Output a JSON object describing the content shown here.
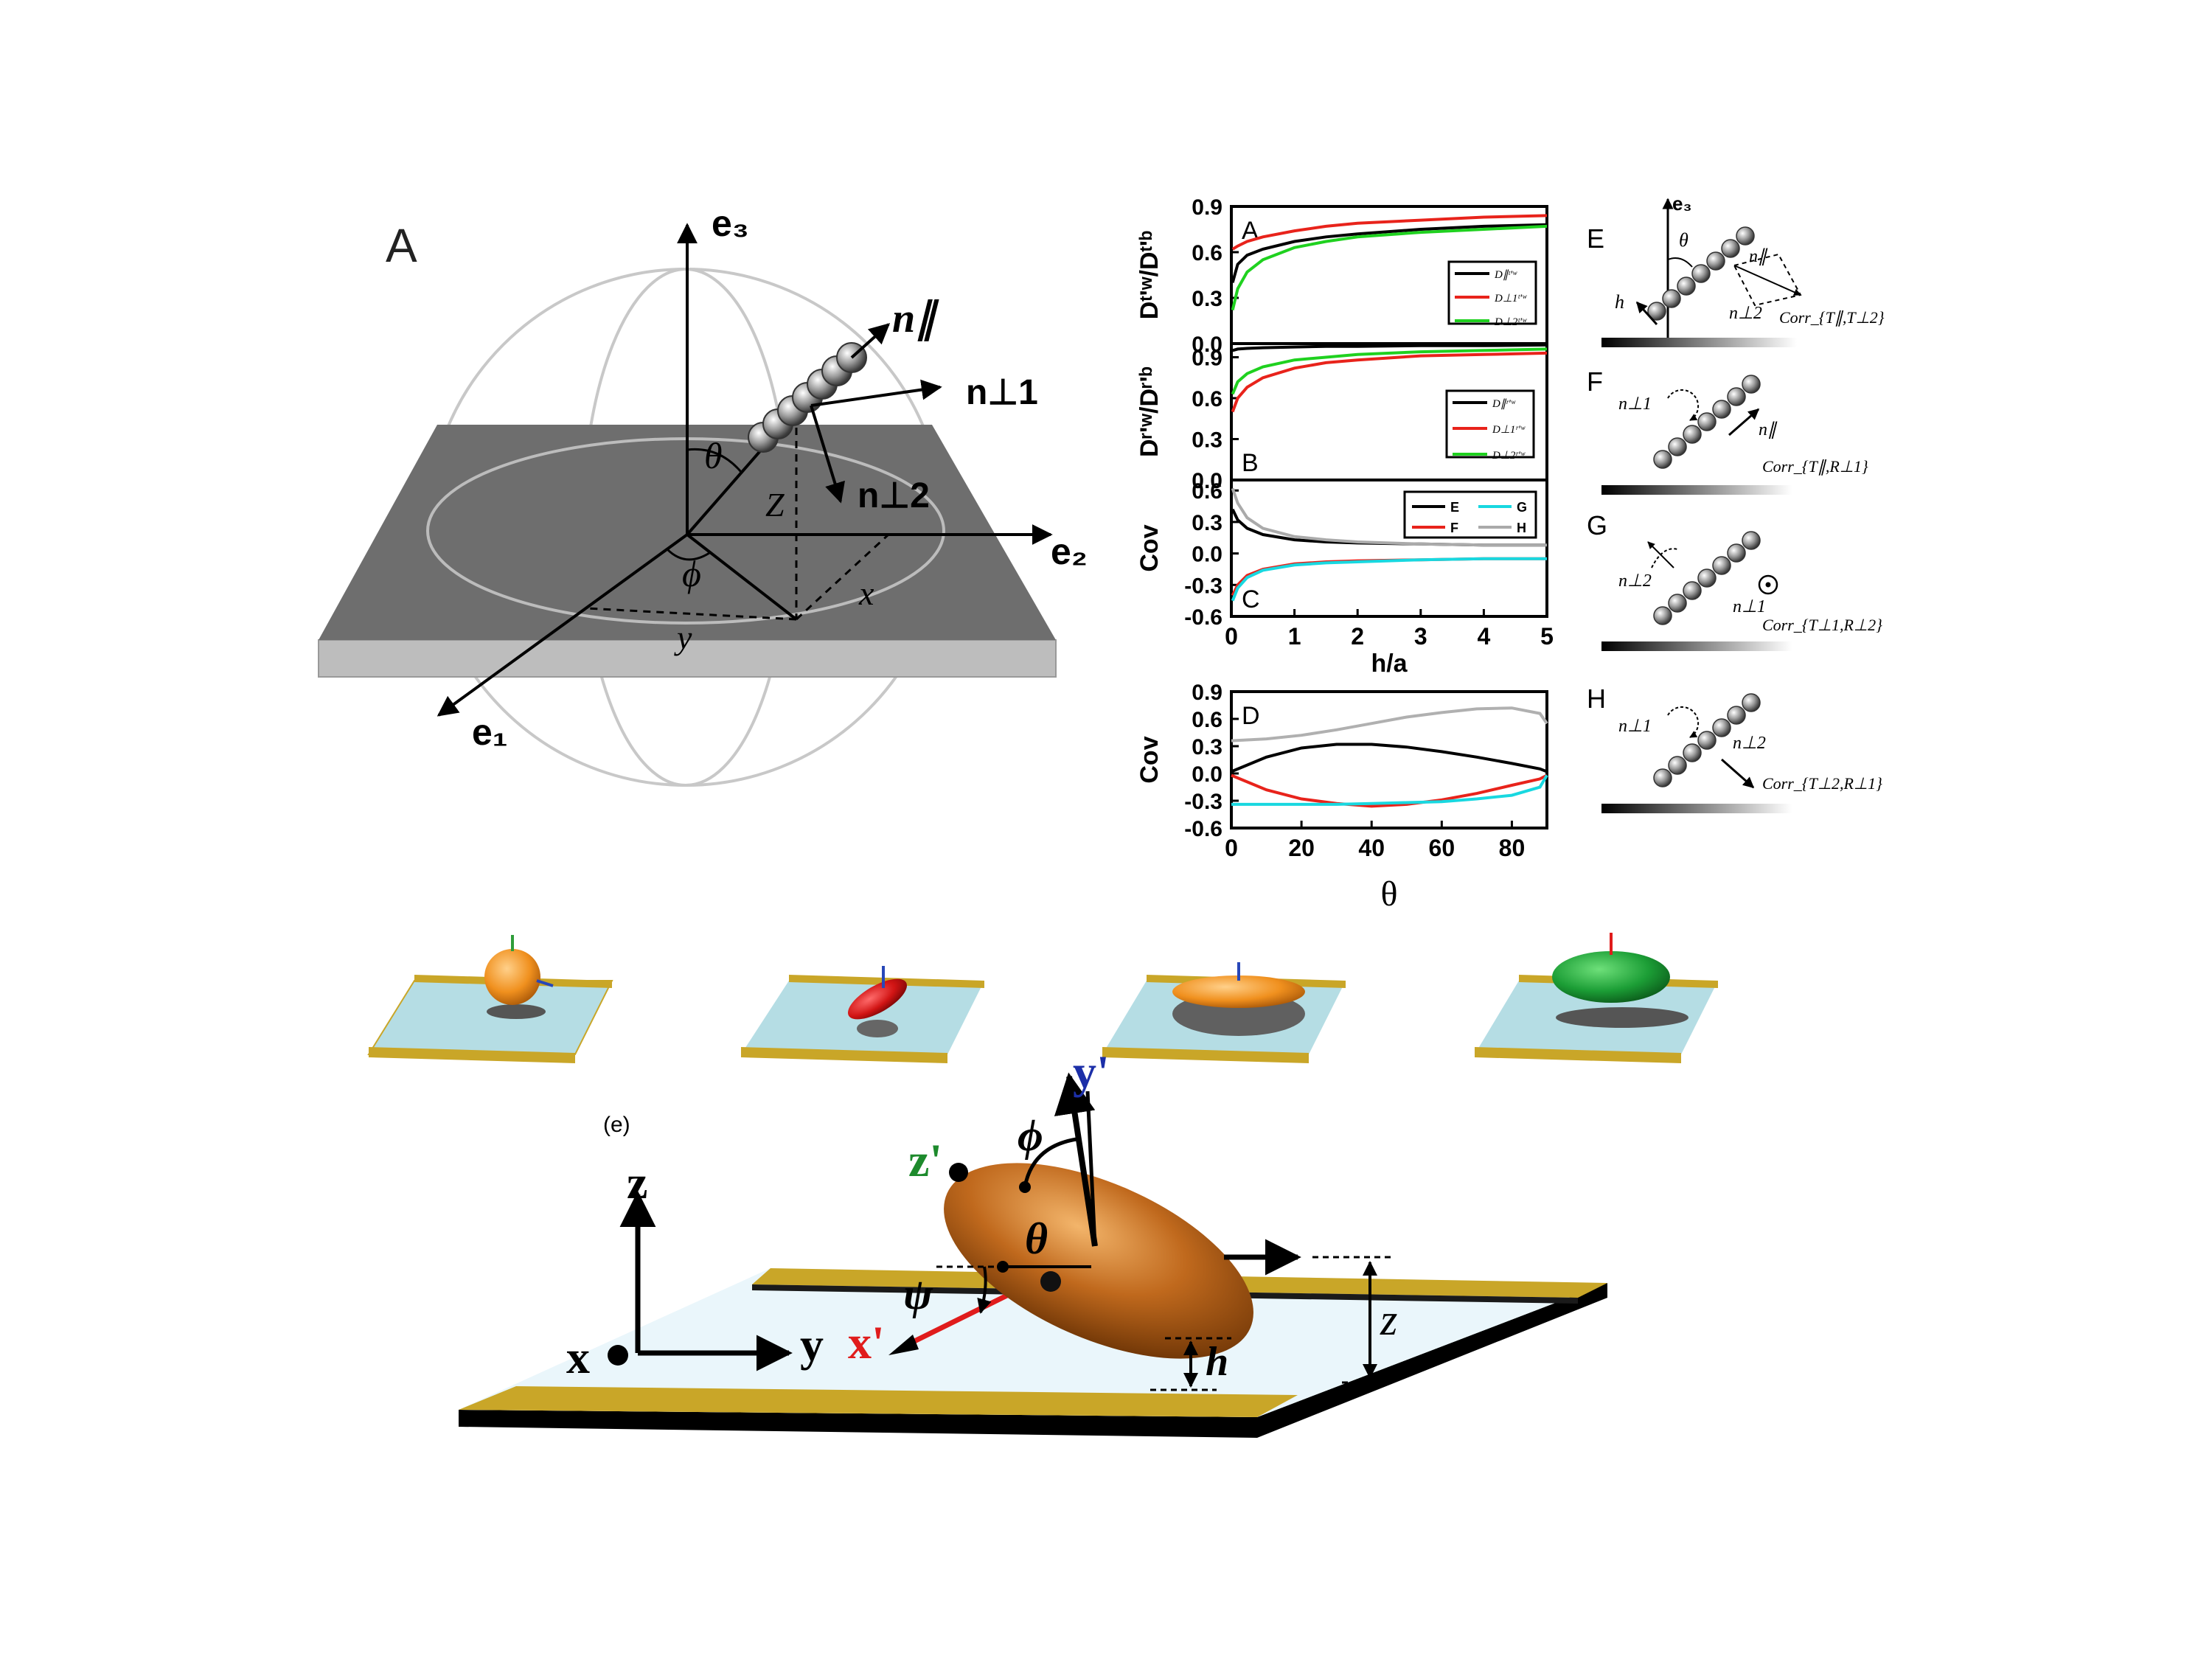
{
  "figure_a": {
    "panel_label": "A",
    "axis_e1": "e₁",
    "axis_e2": "e₂",
    "axis_e3": "e₃",
    "n_par": "n∥",
    "n_perp1": "n⊥1",
    "n_perp2": "n⊥2",
    "theta": "θ",
    "phi": "ϕ",
    "z": "Z",
    "x": "x",
    "y": "y"
  },
  "chart_data": [
    {
      "type": "line",
      "panel": "A",
      "ylabel": "Dᵗ'ʷ/Dᵗ'ᵇ",
      "xlim": [
        0,
        5
      ],
      "ylim": [
        0.0,
        0.9
      ],
      "yticks": [
        "0.9",
        "0.6",
        "0.3",
        "0.0"
      ],
      "x": [
        0.02,
        0.1,
        0.25,
        0.5,
        1,
        1.5,
        2,
        3,
        4,
        5
      ],
      "series": [
        {
          "name": "D∥ᵗ'ʷ",
          "color": "#000000",
          "values": [
            0.4,
            0.52,
            0.58,
            0.62,
            0.67,
            0.7,
            0.72,
            0.75,
            0.77,
            0.78
          ]
        },
        {
          "name": "D⊥1ᵗ'ʷ",
          "color": "#e8231b",
          "values": [
            0.62,
            0.64,
            0.67,
            0.7,
            0.74,
            0.77,
            0.79,
            0.81,
            0.83,
            0.84
          ]
        },
        {
          "name": "D⊥2ᵗ'ʷ",
          "color": "#1fd11f",
          "values": [
            0.22,
            0.36,
            0.47,
            0.55,
            0.63,
            0.67,
            0.7,
            0.73,
            0.75,
            0.77
          ]
        }
      ]
    },
    {
      "type": "line",
      "panel": "B",
      "ylabel": "Dʳ'ʷ/Dʳ'ᵇ",
      "xlim": [
        0,
        5
      ],
      "ylim": [
        0.0,
        1.0
      ],
      "yticks": [
        "0.9",
        "0.6",
        "0.3",
        "0.0"
      ],
      "x": [
        0.02,
        0.1,
        0.25,
        0.5,
        1,
        1.5,
        2,
        3,
        4,
        5
      ],
      "series": [
        {
          "name": "D∥ʳ'ʷ",
          "color": "#000000",
          "values": [
            0.95,
            0.96,
            0.965,
            0.97,
            0.975,
            0.98,
            0.98,
            0.985,
            0.985,
            0.99
          ]
        },
        {
          "name": "D⊥1ʳ'ʷ",
          "color": "#e8231b",
          "values": [
            0.5,
            0.6,
            0.68,
            0.75,
            0.82,
            0.86,
            0.88,
            0.91,
            0.92,
            0.93
          ]
        },
        {
          "name": "D⊥2ʳ'ʷ",
          "color": "#1fd11f",
          "values": [
            0.63,
            0.72,
            0.78,
            0.83,
            0.88,
            0.9,
            0.92,
            0.94,
            0.95,
            0.96
          ]
        }
      ]
    },
    {
      "type": "line",
      "panel": "C",
      "ylabel": "Cov",
      "xlabel": "h/a",
      "xlim": [
        0,
        5
      ],
      "ylim": [
        -0.6,
        0.7
      ],
      "xticks": [
        "0",
        "1",
        "2",
        "3",
        "4",
        "5"
      ],
      "yticks": [
        "0.6",
        "0.3",
        "0.0",
        "-0.3",
        "-0.6"
      ],
      "x": [
        0.02,
        0.1,
        0.25,
        0.5,
        1,
        1.5,
        2,
        3,
        4,
        5
      ],
      "series": [
        {
          "name": "E",
          "color": "#000000",
          "values": [
            0.42,
            0.32,
            0.24,
            0.18,
            0.13,
            0.11,
            0.1,
            0.09,
            0.08,
            0.08
          ]
        },
        {
          "name": "F",
          "color": "#e8231b",
          "values": [
            -0.4,
            -0.3,
            -0.21,
            -0.15,
            -0.1,
            -0.08,
            -0.07,
            -0.06,
            -0.05,
            -0.05
          ]
        },
        {
          "name": "G",
          "color": "#18d8e0",
          "values": [
            -0.45,
            -0.33,
            -0.23,
            -0.16,
            -0.11,
            -0.09,
            -0.08,
            -0.06,
            -0.05,
            -0.05
          ]
        },
        {
          "name": "H",
          "color": "#aaaaaa",
          "values": [
            0.62,
            0.48,
            0.34,
            0.24,
            0.16,
            0.13,
            0.11,
            0.09,
            0.08,
            0.08
          ]
        }
      ]
    },
    {
      "type": "line",
      "panel": "D",
      "ylabel": "Cov",
      "xlabel": "θ",
      "xlim": [
        0,
        90
      ],
      "ylim": [
        -0.6,
        0.9
      ],
      "xticks": [
        "0",
        "20",
        "40",
        "60",
        "80"
      ],
      "yticks": [
        "0.9",
        "0.6",
        "0.3",
        "0.0",
        "-0.3",
        "-0.6"
      ],
      "x": [
        0,
        10,
        20,
        30,
        40,
        50,
        60,
        70,
        80,
        88,
        90
      ],
      "series": [
        {
          "name": "E",
          "color": "#000000",
          "values": [
            0.02,
            0.18,
            0.28,
            0.32,
            0.32,
            0.29,
            0.24,
            0.18,
            0.11,
            0.05,
            0.02
          ]
        },
        {
          "name": "F",
          "color": "#e8231b",
          "values": [
            -0.02,
            -0.18,
            -0.28,
            -0.33,
            -0.36,
            -0.34,
            -0.29,
            -0.22,
            -0.13,
            -0.06,
            -0.02
          ]
        },
        {
          "name": "G",
          "color": "#18d8e0",
          "values": [
            -0.34,
            -0.34,
            -0.34,
            -0.34,
            -0.33,
            -0.32,
            -0.31,
            -0.28,
            -0.24,
            -0.15,
            -0.02
          ]
        },
        {
          "name": "H",
          "color": "#b0b0b0",
          "values": [
            0.36,
            0.38,
            0.42,
            0.48,
            0.55,
            0.62,
            0.67,
            0.71,
            0.72,
            0.66,
            0.55
          ]
        }
      ]
    }
  ],
  "schematics": {
    "E": {
      "label": "E",
      "e3": "e₃",
      "theta": "θ",
      "n_par": "n∥",
      "n_perp2": "n⊥2",
      "h": "h",
      "corr": "Corr_{T∥,T⊥2}"
    },
    "F": {
      "label": "F",
      "n_perp1": "n⊥1",
      "n_par": "n∥",
      "corr": "Corr_{T∥,R⊥1}"
    },
    "G": {
      "label": "G",
      "n_perp2": "n⊥2",
      "n_perp1": "n⊥1",
      "corr": "Corr_{T⊥1,R⊥2}"
    },
    "H": {
      "label": "H",
      "n_perp1": "n⊥1",
      "n_perp2": "n⊥2",
      "corr": "Corr_{T⊥2,R⊥1}"
    }
  },
  "bottom": {
    "panel_label": "(e)",
    "x_axis": "x",
    "y_axis": "y",
    "z_axis": "z",
    "x_prime": "x'",
    "y_prime": "y'",
    "z_prime": "z'",
    "phi": "ϕ",
    "theta": "θ",
    "psi": "ψ",
    "z_dist": "z",
    "h_dist": "h",
    "colors": {
      "particle": "#b8651a",
      "x_prime": "#e01c1c",
      "y_prime": "#1c2fa8",
      "z_prime": "#1d8a2c",
      "rail": "#c9a628",
      "surface": "#e8f6fa"
    }
  }
}
